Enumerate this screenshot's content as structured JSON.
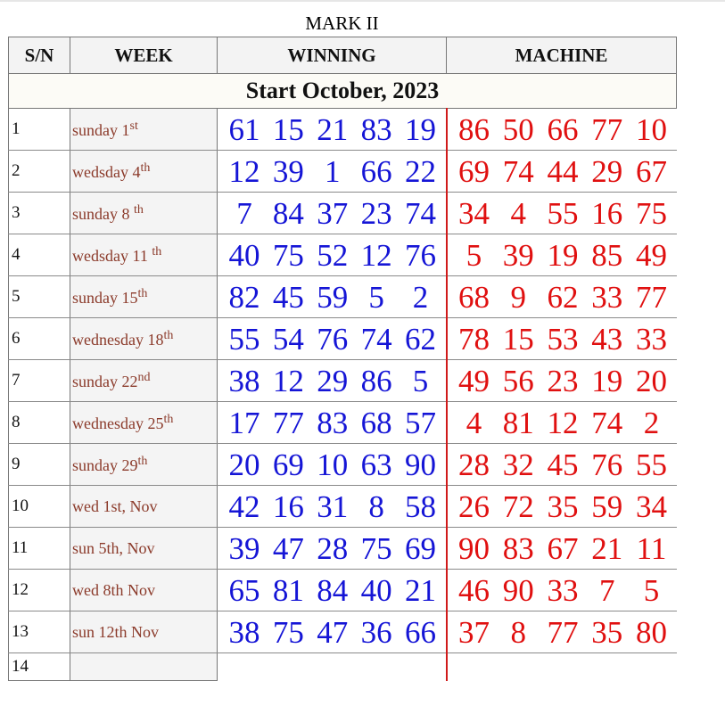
{
  "page": {
    "title": "MARK II"
  },
  "headers": {
    "sn": "S/N",
    "week": "WEEK",
    "winning": "WINNING",
    "machine": "MACHINE"
  },
  "start_label": "Start October, 2023",
  "rows": [
    {
      "sn": "1",
      "day": "sunday 1",
      "sup": "st",
      "winning": [
        "61",
        "15",
        "21",
        "83",
        "19"
      ],
      "machine": [
        "86",
        "50",
        "66",
        "77",
        "10"
      ]
    },
    {
      "sn": "2",
      "day": "wedsday 4",
      "sup": "th",
      "winning": [
        "12",
        "39",
        "1",
        "66",
        "22"
      ],
      "machine": [
        "69",
        "74",
        "44",
        "29",
        "67"
      ]
    },
    {
      "sn": "3",
      "day": "sunday 8 ",
      "sup": "th",
      "winning": [
        "7",
        "84",
        "37",
        "23",
        "74"
      ],
      "machine": [
        "34",
        "4",
        "55",
        "16",
        "75"
      ]
    },
    {
      "sn": "4",
      "day": "wedsday 11 ",
      "sup": "th",
      "winning": [
        "40",
        "75",
        "52",
        "12",
        "76"
      ],
      "machine": [
        "5",
        "39",
        "19",
        "85",
        "49"
      ]
    },
    {
      "sn": "5",
      "day": "sunday 15",
      "sup": "th",
      "winning": [
        "82",
        "45",
        "59",
        "5",
        "2"
      ],
      "machine": [
        "68",
        "9",
        "62",
        "33",
        "77"
      ]
    },
    {
      "sn": "6",
      "day": "wednesday 18",
      "sup": "th",
      "winning": [
        "55",
        "54",
        "76",
        "74",
        "62"
      ],
      "machine": [
        "78",
        "15",
        "53",
        "43",
        "33"
      ]
    },
    {
      "sn": "7",
      "day": "sunday 22",
      "sup": "nd",
      "winning": [
        "38",
        "12",
        "29",
        "86",
        "5"
      ],
      "machine": [
        "49",
        "56",
        "23",
        "19",
        "20"
      ]
    },
    {
      "sn": "8",
      "day": "wednesday 25",
      "sup": "th",
      "winning": [
        "17",
        "77",
        "83",
        "68",
        "57"
      ],
      "machine": [
        "4",
        "81",
        "12",
        "74",
        "2"
      ]
    },
    {
      "sn": "9",
      "day": "sunday 29",
      "sup": "th",
      "winning": [
        "20",
        "69",
        "10",
        "63",
        "90"
      ],
      "machine": [
        "28",
        "32",
        "45",
        "76",
        "55"
      ]
    },
    {
      "sn": "10",
      "day": "wed 1st, Nov",
      "sup": "",
      "winning": [
        "42",
        "16",
        "31",
        "8",
        "58"
      ],
      "machine": [
        "26",
        "72",
        "35",
        "59",
        "34"
      ]
    },
    {
      "sn": "11",
      "day": "sun 5th, Nov",
      "sup": "",
      "winning": [
        "39",
        "47",
        "28",
        "75",
        "69"
      ],
      "machine": [
        "90",
        "83",
        "67",
        "21",
        "11"
      ]
    },
    {
      "sn": "12",
      "day": "wed 8th Nov",
      "sup": "",
      "winning": [
        "65",
        "81",
        "84",
        "40",
        "21"
      ],
      "machine": [
        "46",
        "90",
        "33",
        "7",
        "5"
      ]
    },
    {
      "sn": "13",
      "day": "sun 12th Nov",
      "sup": "",
      "winning": [
        "38",
        "75",
        "47",
        "36",
        "66"
      ],
      "machine": [
        "37",
        "8",
        "77",
        "35",
        "80"
      ]
    },
    {
      "sn": "14",
      "day": "",
      "sup": "",
      "winning": [],
      "machine": []
    }
  ],
  "colors": {
    "winning": "#1515d6",
    "machine": "#e01010",
    "week_text": "#8b3a2a",
    "divider": "#d01a1a"
  }
}
